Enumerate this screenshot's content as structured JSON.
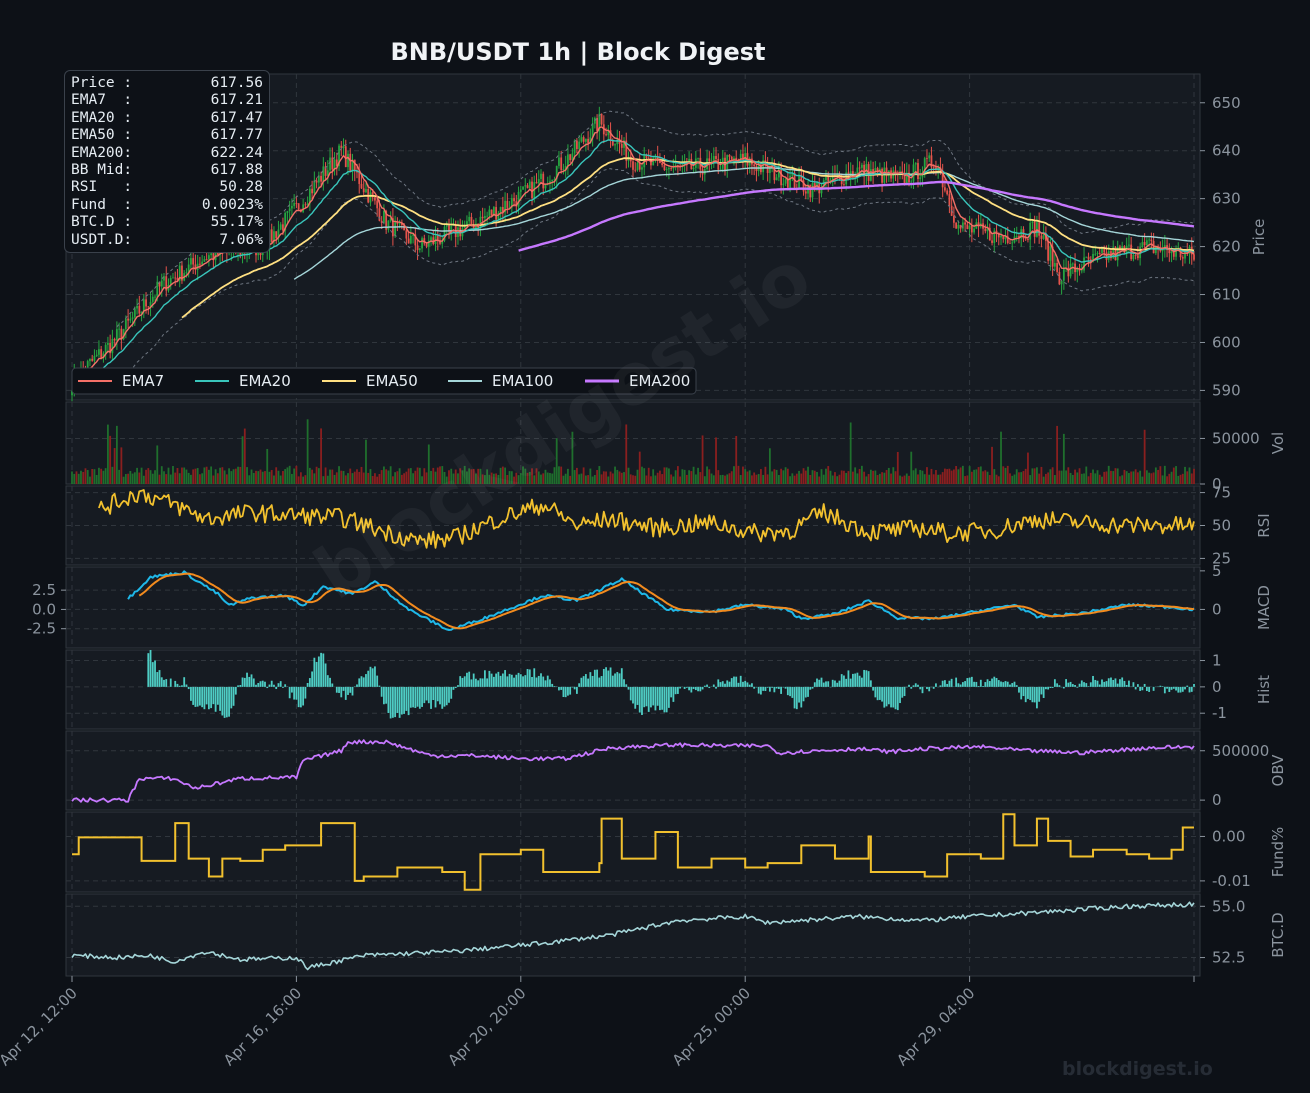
{
  "title": "BNB/USDT  1h  |  Block Digest",
  "watermark": "blockdigest.io",
  "info_panel": [
    {
      "label": "Price :",
      "value": "617.56"
    },
    {
      "label": "EMA7  :",
      "value": "617.21"
    },
    {
      "label": "EMA20 :",
      "value": "617.47"
    },
    {
      "label": "EMA50 :",
      "value": "617.77"
    },
    {
      "label": "EMA200:",
      "value": "622.24"
    },
    {
      "label": "BB Mid:",
      "value": "617.88"
    },
    {
      "label": "RSI   :",
      "value": "50.28"
    },
    {
      "label": "Fund  :",
      "value": "0.0023%"
    },
    {
      "label": "BTC.D :",
      "value": "55.17%"
    },
    {
      "label": "USDT.D:",
      "value": "7.06%"
    }
  ],
  "colors": {
    "background": "#0d1117",
    "panel": "#161b22",
    "grid": "#30363d",
    "up": "#26a641",
    "down": "#e5534b",
    "ema7": "#f47067",
    "ema20": "#39c5bb",
    "ema50": "#ffe082",
    "ema100": "#a5d6d9",
    "ema200": "#c678ff",
    "rsi": "#f2c12e",
    "macd": "#1fb8e8",
    "signal": "#f28b1e",
    "hist": "#4ecdc4",
    "obv": "#c678ff",
    "fund": "#f2c12e",
    "btcd": "#a5d6d9"
  },
  "chart_data": {
    "type": "line",
    "x_ticks": [
      "Apr 12, 12:00",
      "Apr 16, 16:00",
      "Apr 20, 20:00",
      "Apr 25, 00:00",
      "Apr 29, 04:00"
    ],
    "panels": [
      {
        "name": "price",
        "ylabel": "Price",
        "ylim": [
          588,
          656
        ],
        "yticks": [
          "590",
          "600",
          "610",
          "620",
          "630",
          "640",
          "650"
        ],
        "legend": [
          "EMA7",
          "EMA20",
          "EMA50",
          "EMA100",
          "EMA200"
        ],
        "close_anchors": [
          [
            0,
            592
          ],
          [
            18,
            600
          ],
          [
            40,
            612
          ],
          [
            60,
            618
          ],
          [
            85,
            620
          ],
          [
            100,
            628
          ],
          [
            120,
            640
          ],
          [
            140,
            625
          ],
          [
            155,
            620
          ],
          [
            180,
            625
          ],
          [
            205,
            632
          ],
          [
            220,
            638
          ],
          [
            235,
            646
          ],
          [
            250,
            638
          ],
          [
            270,
            636
          ],
          [
            300,
            638
          ],
          [
            330,
            632
          ],
          [
            350,
            636
          ],
          [
            370,
            634
          ],
          [
            385,
            638
          ],
          [
            395,
            624
          ],
          [
            415,
            622
          ],
          [
            430,
            624
          ],
          [
            440,
            614
          ],
          [
            460,
            618
          ],
          [
            480,
            620
          ],
          [
            500,
            618
          ]
        ]
      },
      {
        "name": "volume",
        "ylabel": "Vol",
        "ylim": [
          0,
          90000
        ],
        "yticks": [
          "0",
          "50000"
        ]
      },
      {
        "name": "rsi",
        "ylabel": "RSI",
        "ylim": [
          20,
          80
        ],
        "yticks": [
          "25",
          "50",
          "75"
        ],
        "anchors": [
          [
            12,
            62
          ],
          [
            30,
            75
          ],
          [
            45,
            66
          ],
          [
            60,
            55
          ],
          [
            80,
            60
          ],
          [
            95,
            58
          ],
          [
            120,
            56
          ],
          [
            140,
            45
          ],
          [
            155,
            38
          ],
          [
            170,
            40
          ],
          [
            190,
            55
          ],
          [
            210,
            66
          ],
          [
            225,
            50
          ],
          [
            240,
            55
          ],
          [
            260,
            48
          ],
          [
            285,
            52
          ],
          [
            305,
            44
          ],
          [
            320,
            46
          ],
          [
            335,
            60
          ],
          [
            355,
            45
          ],
          [
            380,
            48
          ],
          [
            390,
            44
          ],
          [
            410,
            46
          ],
          [
            430,
            55
          ],
          [
            450,
            52
          ],
          [
            470,
            50
          ],
          [
            490,
            50
          ],
          [
            500,
            50
          ]
        ]
      },
      {
        "name": "macd",
        "ylabel": "MACD",
        "ylim": [
          -5,
          5.5
        ],
        "yticks": [
          "-2.5",
          "0.0",
          "2.5"
        ],
        "right_ticks": [
          "0",
          "5"
        ],
        "anchors": [
          [
            25,
            1.4
          ],
          [
            35,
            4.2
          ],
          [
            50,
            4.8
          ],
          [
            65,
            2
          ],
          [
            70,
            0.5
          ],
          [
            80,
            1.5
          ],
          [
            95,
            1.8
          ],
          [
            103,
            0.5
          ],
          [
            112,
            3
          ],
          [
            125,
            2
          ],
          [
            135,
            3.6
          ],
          [
            150,
            0
          ],
          [
            168,
            -2.7
          ],
          [
            185,
            -1
          ],
          [
            210,
            1.8
          ],
          [
            225,
            1.2
          ],
          [
            245,
            3.9
          ],
          [
            265,
            0
          ],
          [
            285,
            -0.3
          ],
          [
            300,
            0.6
          ],
          [
            318,
            0
          ],
          [
            325,
            -1.2
          ],
          [
            340,
            -0.6
          ],
          [
            355,
            1.1
          ],
          [
            368,
            -1.1
          ],
          [
            385,
            -1.2
          ],
          [
            410,
            0.1
          ],
          [
            420,
            0.6
          ],
          [
            430,
            -1
          ],
          [
            450,
            -0.5
          ],
          [
            470,
            0.6
          ],
          [
            490,
            0.3
          ],
          [
            500,
            0
          ]
        ],
        "signal_lag": 4
      },
      {
        "name": "hist",
        "ylabel": "Hist",
        "ylim": [
          -1.6,
          1.4
        ],
        "yticks": [
          "1",
          "0",
          "-1"
        ]
      },
      {
        "name": "obv",
        "ylabel": "OBV",
        "ylim": [
          -100000,
          700000
        ],
        "yticks": [
          "0",
          "500000"
        ],
        "anchors": [
          [
            0,
            0
          ],
          [
            25,
            0
          ],
          [
            30,
            220000
          ],
          [
            45,
            220000
          ],
          [
            55,
            120000
          ],
          [
            75,
            220000
          ],
          [
            100,
            230000
          ],
          [
            103,
            400000
          ],
          [
            120,
            500000
          ],
          [
            123,
            590000
          ],
          [
            140,
            590000
          ],
          [
            160,
            450000
          ],
          [
            180,
            450000
          ],
          [
            200,
            420000
          ],
          [
            220,
            420000
          ],
          [
            240,
            530000
          ],
          [
            270,
            560000
          ],
          [
            290,
            550000
          ],
          [
            310,
            550000
          ],
          [
            315,
            480000
          ],
          [
            350,
            520000
          ],
          [
            365,
            490000
          ],
          [
            380,
            520000
          ],
          [
            405,
            540000
          ],
          [
            425,
            500000
          ],
          [
            450,
            480000
          ],
          [
            480,
            530000
          ],
          [
            500,
            540000
          ]
        ]
      },
      {
        "name": "fund",
        "ylabel": "Fund%",
        "ylim": [
          -0.0125,
          0.0055
        ],
        "yticks": [
          "0.00",
          "-0.01"
        ],
        "anchors": [
          [
            0,
            -0.004
          ],
          [
            3,
            -0.0002
          ],
          [
            28,
            -0.0002
          ],
          [
            31,
            -0.0055
          ],
          [
            45,
            -0.0055
          ],
          [
            46,
            0.003
          ],
          [
            51,
            0.003
          ],
          [
            52,
            -0.005
          ],
          [
            60,
            -0.005
          ],
          [
            61,
            -0.009
          ],
          [
            67,
            -0.005
          ],
          [
            75,
            -0.0055
          ],
          [
            85,
            -0.003
          ],
          [
            95,
            -0.002
          ],
          [
            110,
            -0.002
          ],
          [
            111,
            0.003
          ],
          [
            125,
            0.003
          ],
          [
            126,
            -0.01
          ],
          [
            130,
            -0.009
          ],
          [
            145,
            -0.007
          ],
          [
            165,
            -0.008
          ],
          [
            175,
            -0.012
          ],
          [
            182,
            -0.004
          ],
          [
            200,
            -0.003
          ],
          [
            210,
            -0.008
          ],
          [
            235,
            -0.006
          ],
          [
            236,
            0.004
          ],
          [
            245,
            -0.005
          ],
          [
            260,
            0.001
          ],
          [
            270,
            -0.007
          ],
          [
            285,
            -0.005
          ],
          [
            300,
            -0.007
          ],
          [
            310,
            -0.006
          ],
          [
            325,
            -0.002
          ],
          [
            340,
            -0.005
          ],
          [
            355,
            0.0
          ],
          [
            355,
            0.0
          ],
          [
            356,
            -0.008
          ],
          [
            380,
            -0.009
          ],
          [
            390,
            -0.004
          ],
          [
            405,
            -0.005
          ],
          [
            415,
            0.005
          ],
          [
            420,
            -0.002
          ],
          [
            430,
            0.004
          ],
          [
            435,
            -0.001
          ],
          [
            445,
            -0.0045
          ],
          [
            455,
            -0.003
          ],
          [
            470,
            -0.004
          ],
          [
            480,
            -0.005
          ],
          [
            490,
            -0.003
          ],
          [
            495,
            0.002
          ],
          [
            500,
            0.002
          ]
        ]
      },
      {
        "name": "btcd",
        "ylabel": "BTC.D",
        "ylim": [
          51.6,
          55.6
        ],
        "yticks": [
          "52.5",
          "55.0"
        ],
        "anchors": [
          [
            0,
            52.6
          ],
          [
            20,
            52.5
          ],
          [
            35,
            52.6
          ],
          [
            45,
            52.3
          ],
          [
            60,
            52.8
          ],
          [
            75,
            52.4
          ],
          [
            100,
            52.5
          ],
          [
            105,
            52.0
          ],
          [
            130,
            52.6
          ],
          [
            170,
            52.8
          ],
          [
            210,
            53.2
          ],
          [
            240,
            53.6
          ],
          [
            270,
            54.3
          ],
          [
            300,
            54.5
          ],
          [
            310,
            54.2
          ],
          [
            350,
            54.5
          ],
          [
            380,
            54.3
          ],
          [
            400,
            54.5
          ],
          [
            430,
            54.7
          ],
          [
            470,
            55.0
          ],
          [
            500,
            55.1
          ]
        ]
      }
    ]
  }
}
